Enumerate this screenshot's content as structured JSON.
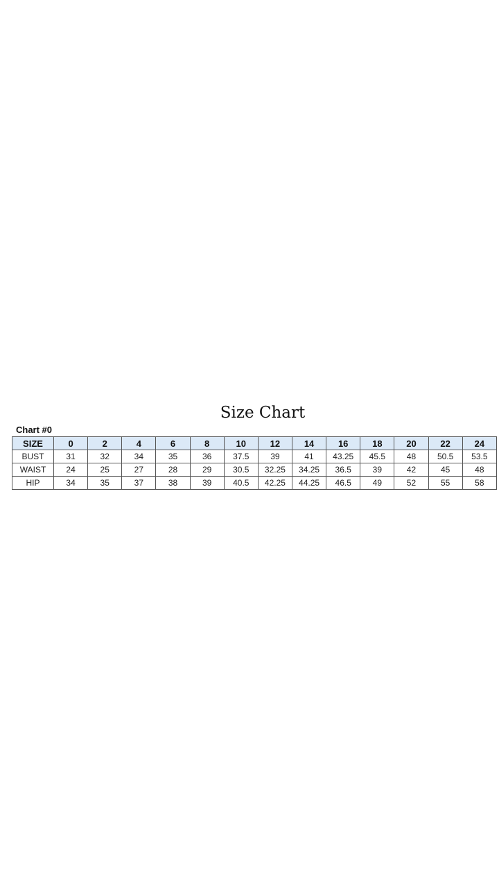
{
  "title": "Size Chart",
  "subtitle": "Chart #0",
  "colors": {
    "header_bg": "#dbe9f7",
    "border": "#555555"
  },
  "table": {
    "headers": [
      "SIZE",
      "0",
      "2",
      "4",
      "6",
      "8",
      "10",
      "12",
      "14",
      "16",
      "18",
      "20",
      "22",
      "24"
    ],
    "rows": [
      [
        "BUST",
        "31",
        "32",
        "34",
        "35",
        "36",
        "37.5",
        "39",
        "41",
        "43.25",
        "45.5",
        "48",
        "50.5",
        "53.5"
      ],
      [
        "WAIST",
        "24",
        "25",
        "27",
        "28",
        "29",
        "30.5",
        "32.25",
        "34.25",
        "36.5",
        "39",
        "42",
        "45",
        "48"
      ],
      [
        "HIP",
        "34",
        "35",
        "37",
        "38",
        "39",
        "40.5",
        "42.25",
        "44.25",
        "46.5",
        "49",
        "52",
        "55",
        "58"
      ]
    ]
  }
}
